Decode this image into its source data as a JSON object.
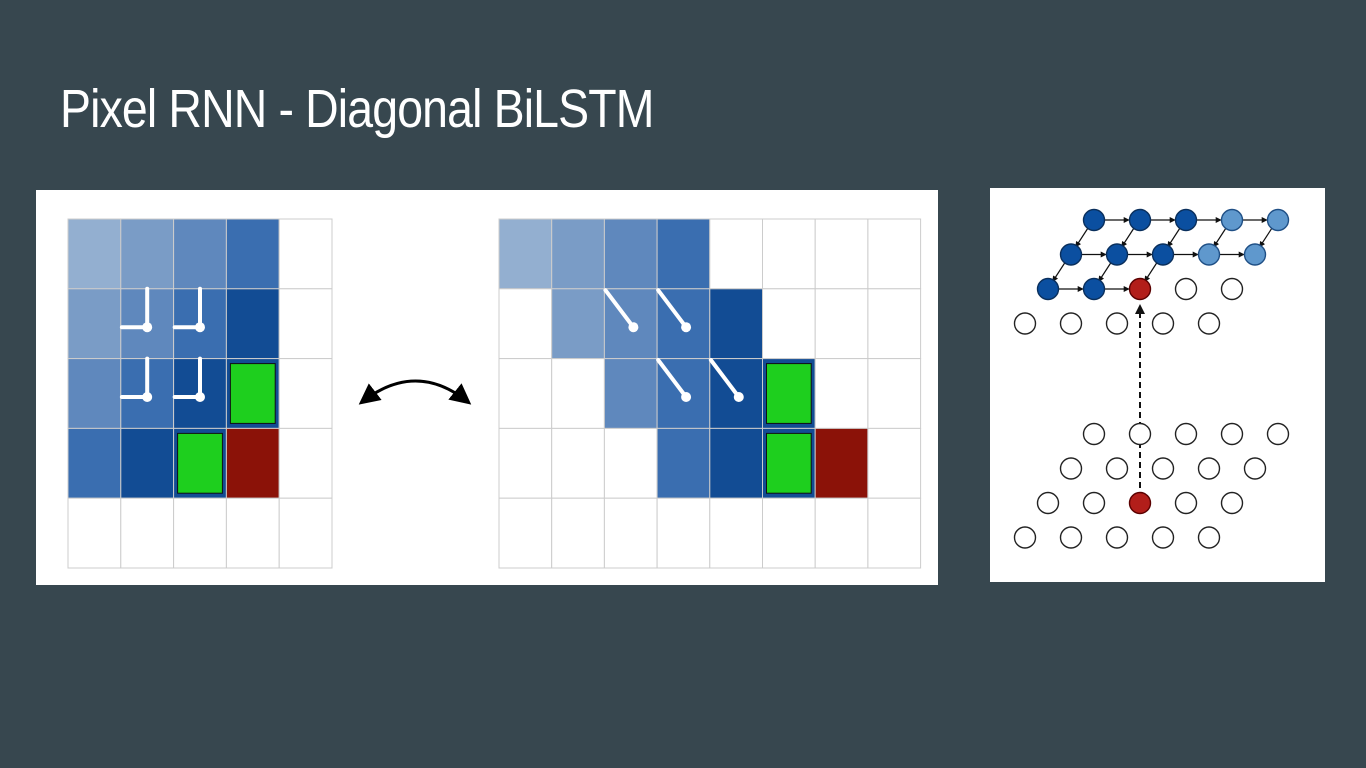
{
  "slide": {
    "title": "Pixel RNN - Diagonal BiLSTM"
  },
  "colors": {
    "background": "#37474f",
    "title": "#ffffff",
    "shade_light": "#93afd0",
    "shade_lightmid": "#7a9cc6",
    "shade_mid": "#5f88bd",
    "shade_dark": "#3a6eb0",
    "shade_darkest": "#124c94",
    "current_input": "#1ecf1e",
    "current_pixel": "#8b1208",
    "gridline": "#cccccc",
    "node_dark": "#0b4fa0",
    "node_light": "#5f98cd",
    "node_current": "#b21e1a"
  },
  "grid_a": {
    "rows": 5,
    "cols": 5,
    "cells": [
      [
        "shade_light",
        "shade_lightmid",
        "shade_mid",
        "shade_dark",
        "empty"
      ],
      [
        "shade_lightmid",
        "shade_mid",
        "shade_dark",
        "shade_darkest",
        "empty"
      ],
      [
        "shade_mid",
        "shade_dark",
        "shade_darkest",
        "current_input",
        "empty"
      ],
      [
        "shade_dark",
        "shade_darkest",
        "current_input",
        "current_pixel",
        "empty"
      ],
      [
        "empty",
        "empty",
        "empty",
        "empty",
        "empty"
      ]
    ],
    "connector_cells": [
      [
        1,
        1
      ],
      [
        1,
        2
      ],
      [
        2,
        1
      ],
      [
        2,
        2
      ]
    ]
  },
  "grid_b": {
    "rows": 5,
    "cols": 8,
    "cells": [
      [
        "shade_light",
        "shade_lightmid",
        "shade_mid",
        "shade_dark",
        "empty",
        "empty",
        "empty",
        "empty"
      ],
      [
        "empty",
        "shade_lightmid",
        "shade_mid",
        "shade_dark",
        "shade_darkest",
        "empty",
        "empty",
        "empty"
      ],
      [
        "empty",
        "empty",
        "shade_mid",
        "shade_dark",
        "shade_darkest",
        "current_input",
        "empty",
        "empty"
      ],
      [
        "empty",
        "empty",
        "empty",
        "shade_dark",
        "shade_darkest",
        "current_input",
        "current_pixel",
        "empty"
      ],
      [
        "empty",
        "empty",
        "empty",
        "empty",
        "empty",
        "empty",
        "empty",
        "empty"
      ]
    ],
    "connector_cells": [
      [
        1,
        2
      ],
      [
        1,
        3
      ],
      [
        2,
        3
      ],
      [
        2,
        4
      ]
    ]
  },
  "lattice": {
    "upper_rows": [
      [
        "dark",
        "dark",
        "dark",
        "light",
        "light"
      ],
      [
        "dark",
        "dark",
        "dark",
        "light",
        "light"
      ],
      [
        "dark",
        "dark",
        "current",
        "empty",
        "empty"
      ],
      [
        "empty",
        "empty",
        "empty",
        "empty",
        "empty"
      ]
    ],
    "lower_rows": [
      [
        "empty",
        "empty",
        "empty",
        "empty",
        "empty"
      ],
      [
        "empty",
        "empty",
        "empty",
        "empty",
        "empty"
      ],
      [
        "empty",
        "empty",
        "current",
        "empty",
        "empty"
      ],
      [
        "empty",
        "empty",
        "empty",
        "empty",
        "empty"
      ]
    ]
  }
}
